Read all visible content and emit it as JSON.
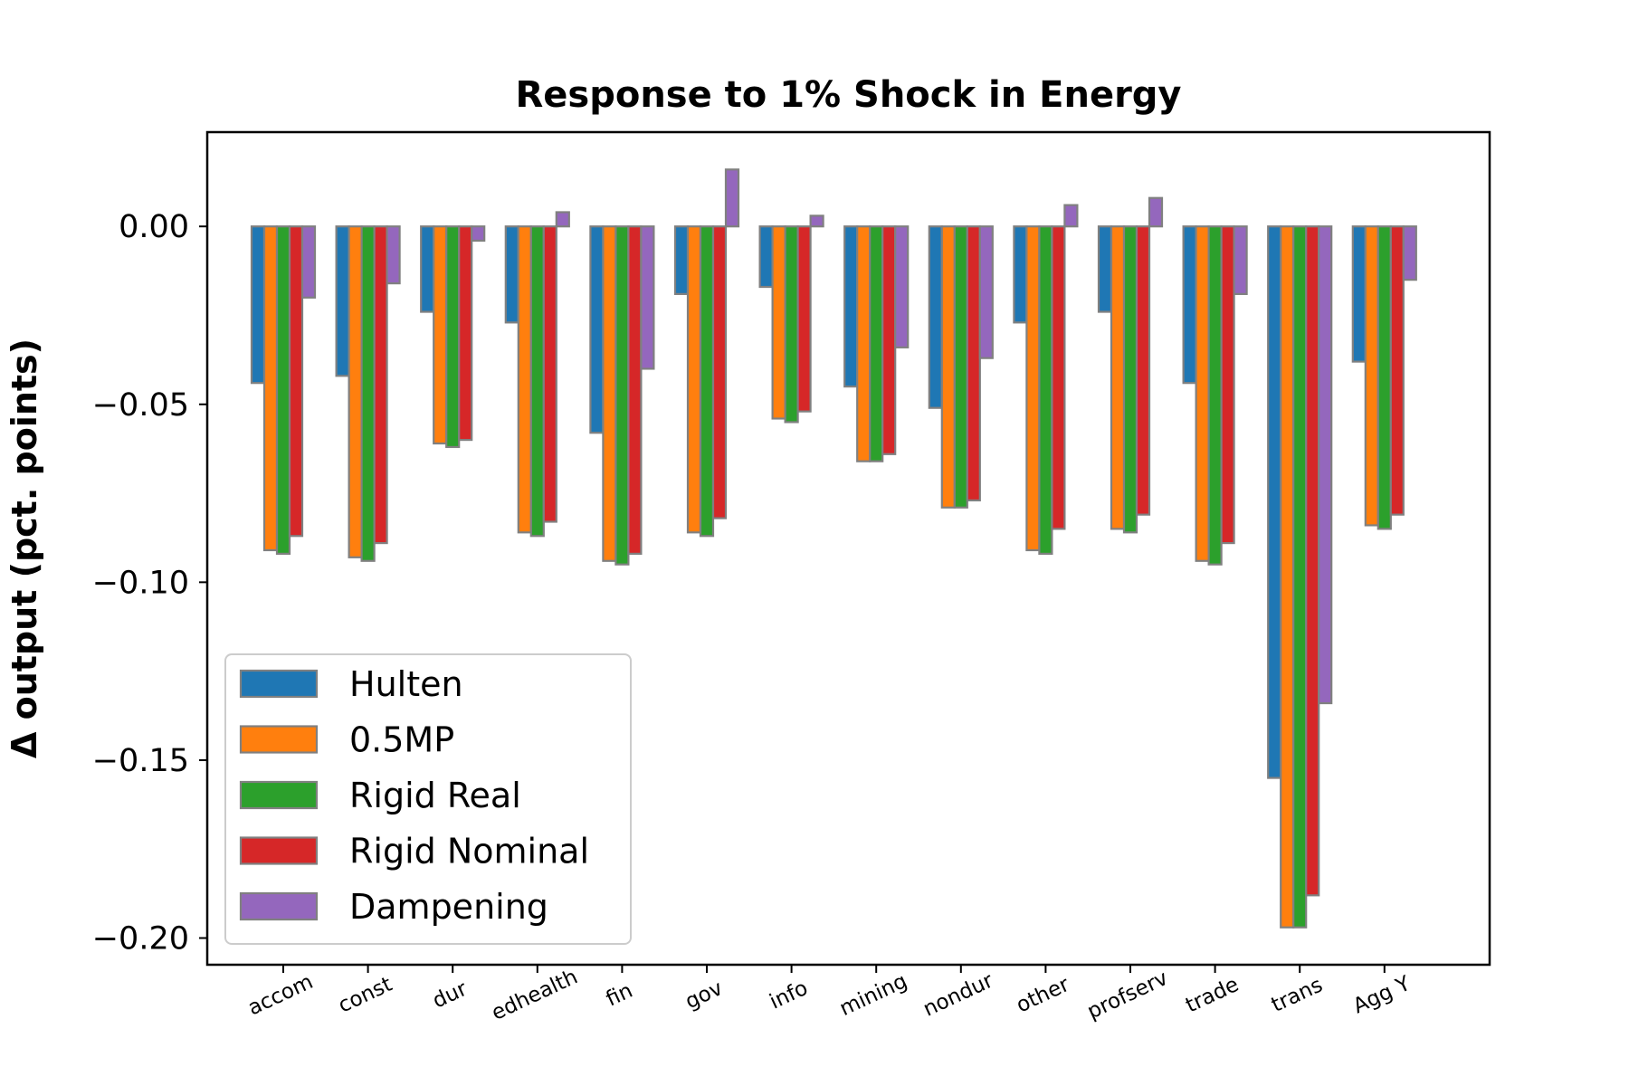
{
  "chart_data": {
    "type": "bar",
    "title": "Response to 1% Shock in Energy",
    "xlabel": "",
    "ylabel": "Δ output (pct. points)",
    "ylim": [
      -0.2075,
      0.0265
    ],
    "yticks": [
      0.0,
      -0.05,
      -0.1,
      -0.15,
      -0.2
    ],
    "ytick_labels": [
      "0.00",
      "−0.05",
      "−0.10",
      "−0.15",
      "−0.20"
    ],
    "grid": false,
    "legend_position": "lower-left",
    "categories": [
      "accom",
      "const",
      "dur",
      "edhealth",
      "fin",
      "gov",
      "info",
      "mining",
      "nondur",
      "other",
      "profserv",
      "trade",
      "trans",
      "Agg Y"
    ],
    "series": [
      {
        "name": "Hulten",
        "color": "#1f77b4",
        "values": [
          -0.044,
          -0.042,
          -0.024,
          -0.027,
          -0.058,
          -0.019,
          -0.017,
          -0.045,
          -0.051,
          -0.027,
          -0.024,
          -0.044,
          -0.155,
          -0.038
        ]
      },
      {
        "name": "0.5MP",
        "color": "#ff7f0e",
        "values": [
          -0.091,
          -0.093,
          -0.061,
          -0.086,
          -0.094,
          -0.086,
          -0.054,
          -0.066,
          -0.079,
          -0.091,
          -0.085,
          -0.094,
          -0.197,
          -0.084
        ]
      },
      {
        "name": "Rigid Real",
        "color": "#2ca02c",
        "values": [
          -0.092,
          -0.094,
          -0.062,
          -0.087,
          -0.095,
          -0.087,
          -0.055,
          -0.066,
          -0.079,
          -0.092,
          -0.086,
          -0.095,
          -0.197,
          -0.085
        ]
      },
      {
        "name": "Rigid Nominal",
        "color": "#d62728",
        "values": [
          -0.087,
          -0.089,
          -0.06,
          -0.083,
          -0.092,
          -0.082,
          -0.052,
          -0.064,
          -0.077,
          -0.085,
          -0.081,
          -0.089,
          -0.188,
          -0.081
        ]
      },
      {
        "name": "Dampening",
        "color": "#9467bd",
        "values": [
          -0.02,
          -0.016,
          -0.004,
          0.004,
          -0.04,
          0.016,
          0.003,
          -0.034,
          -0.037,
          0.006,
          0.008,
          -0.019,
          -0.134,
          -0.015
        ]
      }
    ]
  }
}
